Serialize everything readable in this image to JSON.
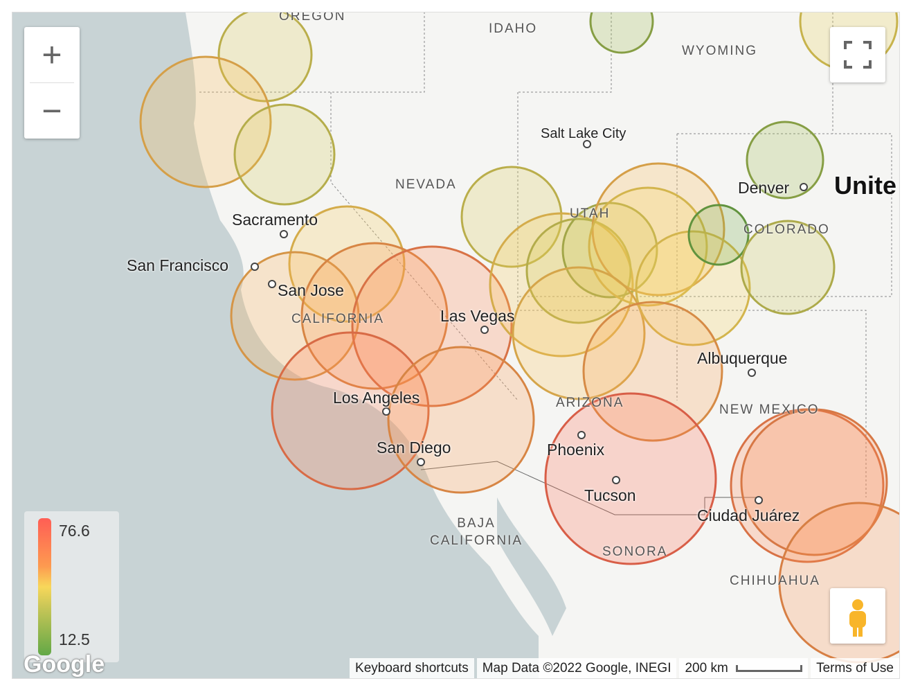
{
  "map": {
    "states": [
      "OREGON",
      "IDAHO",
      "WYOMING",
      "NEVADA",
      "UTAH",
      "COLORADO",
      "CALIFORNIA",
      "ARIZONA",
      "NEW MEXICO",
      "BAJA CALIFORNIA",
      "SONORA",
      "CHIHUAHUA"
    ],
    "cities": [
      "Salt Lake City",
      "Denver",
      "Sacramento",
      "San Francisco",
      "San Jose",
      "Las Vegas",
      "Albuquerque",
      "Los Angeles",
      "San Diego",
      "Phoenix",
      "Tucson",
      "Ciudad Juárez"
    ],
    "country_label": "Unite",
    "circle_values": [
      35,
      52,
      33,
      22,
      40,
      48,
      55,
      60,
      66,
      68,
      60,
      35,
      48,
      32,
      27,
      52,
      45,
      50,
      45,
      58,
      22,
      15,
      30,
      72,
      66,
      64,
      62
    ]
  },
  "legend": {
    "max": "76.6",
    "min": "12.5",
    "colors": [
      "#ff5e55",
      "#fd9a50",
      "#f8d75a",
      "#c8c657",
      "#62a846"
    ]
  },
  "controls": {
    "zoom_in": "+",
    "zoom_out": "−",
    "fullscreen_icon": "fullscreen-icon",
    "pegman_icon": "street-view-pegman-icon"
  },
  "footer": {
    "shortcuts": "Keyboard shortcuts",
    "mapdata": "Map Data ©2022 Google, INEGI",
    "scale": "200 km",
    "terms": "Terms of Use"
  },
  "logo": "Google"
}
